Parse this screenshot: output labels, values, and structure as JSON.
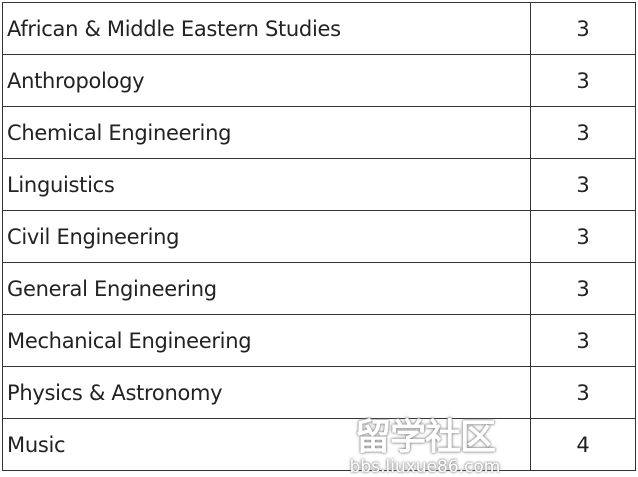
{
  "table": {
    "rows": [
      {
        "subject": "African & Middle Eastern Studies",
        "value": "3"
      },
      {
        "subject": "Anthropology",
        "value": "3"
      },
      {
        "subject": "Chemical Engineering",
        "value": "3"
      },
      {
        "subject": "Linguistics",
        "value": "3"
      },
      {
        "subject": "Civil Engineering",
        "value": "3"
      },
      {
        "subject": "General Engineering",
        "value": "3"
      },
      {
        "subject": "Mechanical Engineering",
        "value": "3"
      },
      {
        "subject": "Physics & Astronomy",
        "value": "3"
      },
      {
        "subject": "Music",
        "value": "4"
      }
    ]
  },
  "watermark": {
    "text": "留学社区",
    "url": "bbs.liuxue86.com"
  }
}
